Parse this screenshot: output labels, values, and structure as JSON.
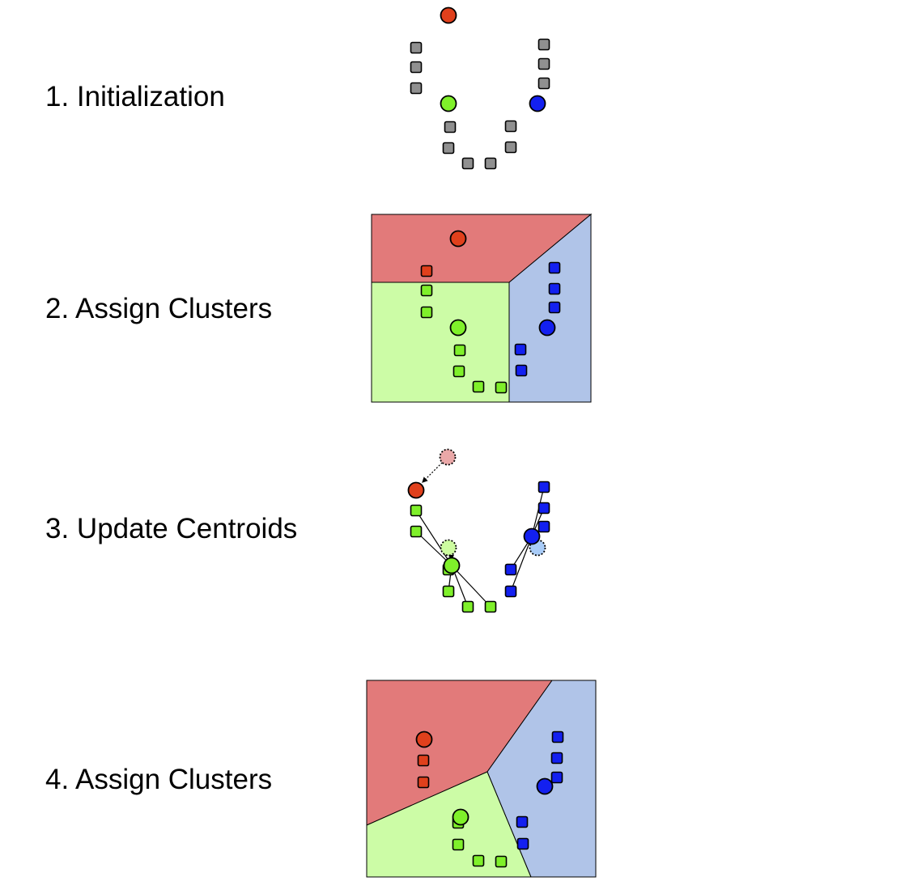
{
  "steps": [
    {
      "label": "1. Initialization"
    },
    {
      "label": "2. Assign Clusters"
    },
    {
      "label": "3. Update Centroids"
    },
    {
      "label": "4. Assign Clusters"
    }
  ],
  "colors": {
    "red": "#e0401c",
    "green": "#7ff02a",
    "blue": "#1320f0",
    "gray": "#909090",
    "red_region": "#e27a7a",
    "green_region": "#ccfca6",
    "blue_region": "#b0c4e8",
    "faded_red": "#eaa8a8",
    "faded_green": "#cdfca0",
    "faded_blue": "#a9ccf8",
    "outline": "#000000"
  },
  "panels": [
    {
      "points": [
        {
          "shape": "circle",
          "color": "red"
        },
        {
          "shape": "square",
          "color": "gray"
        },
        {
          "shape": "square",
          "color": "gray"
        },
        {
          "shape": "square",
          "color": "gray"
        },
        {
          "shape": "square",
          "color": "gray"
        },
        {
          "shape": "square",
          "color": "gray"
        },
        {
          "shape": "square",
          "color": "gray"
        },
        {
          "shape": "circle",
          "color": "green"
        },
        {
          "shape": "circle",
          "color": "blue"
        },
        {
          "shape": "square",
          "color": "gray"
        },
        {
          "shape": "square",
          "color": "gray"
        },
        {
          "shape": "square",
          "color": "gray"
        },
        {
          "shape": "square",
          "color": "gray"
        },
        {
          "shape": "square",
          "color": "gray"
        },
        {
          "shape": "square",
          "color": "gray"
        }
      ]
    },
    {
      "regions": [
        "red_region",
        "green_region",
        "blue_region"
      ],
      "points": [
        {
          "shape": "circle",
          "color": "red"
        },
        {
          "shape": "square",
          "color": "red"
        },
        {
          "shape": "square",
          "color": "green"
        },
        {
          "shape": "square",
          "color": "green"
        },
        {
          "shape": "circle",
          "color": "green"
        },
        {
          "shape": "square",
          "color": "green"
        },
        {
          "shape": "square",
          "color": "green"
        },
        {
          "shape": "square",
          "color": "green"
        },
        {
          "shape": "square",
          "color": "green"
        },
        {
          "shape": "square",
          "color": "blue"
        },
        {
          "shape": "square",
          "color": "blue"
        },
        {
          "shape": "square",
          "color": "blue"
        },
        {
          "shape": "circle",
          "color": "blue"
        },
        {
          "shape": "square",
          "color": "blue"
        },
        {
          "shape": "square",
          "color": "blue"
        }
      ]
    },
    {
      "points": [
        {
          "shape": "circle",
          "color": "faded_red",
          "dashed": true
        },
        {
          "shape": "circle",
          "color": "red"
        },
        {
          "shape": "square",
          "color": "green"
        },
        {
          "shape": "square",
          "color": "green"
        },
        {
          "shape": "circle",
          "color": "faded_green",
          "dashed": true
        },
        {
          "shape": "square",
          "color": "green"
        },
        {
          "shape": "circle",
          "color": "green"
        },
        {
          "shape": "square",
          "color": "green"
        },
        {
          "shape": "square",
          "color": "green"
        },
        {
          "shape": "square",
          "color": "green"
        },
        {
          "shape": "square",
          "color": "blue"
        },
        {
          "shape": "square",
          "color": "blue"
        },
        {
          "shape": "square",
          "color": "blue"
        },
        {
          "shape": "circle",
          "color": "faded_blue",
          "dashed": true
        },
        {
          "shape": "circle",
          "color": "blue"
        },
        {
          "shape": "square",
          "color": "blue"
        },
        {
          "shape": "square",
          "color": "blue"
        }
      ]
    },
    {
      "regions": [
        "red_region",
        "green_region",
        "blue_region"
      ],
      "points": [
        {
          "shape": "circle",
          "color": "red"
        },
        {
          "shape": "square",
          "color": "red"
        },
        {
          "shape": "square",
          "color": "red"
        },
        {
          "shape": "square",
          "color": "green"
        },
        {
          "shape": "circle",
          "color": "green"
        },
        {
          "shape": "square",
          "color": "green"
        },
        {
          "shape": "square",
          "color": "green"
        },
        {
          "shape": "square",
          "color": "green"
        },
        {
          "shape": "square",
          "color": "blue"
        },
        {
          "shape": "square",
          "color": "blue"
        },
        {
          "shape": "square",
          "color": "blue"
        },
        {
          "shape": "circle",
          "color": "blue"
        },
        {
          "shape": "square",
          "color": "blue"
        },
        {
          "shape": "square",
          "color": "blue"
        }
      ]
    }
  ]
}
